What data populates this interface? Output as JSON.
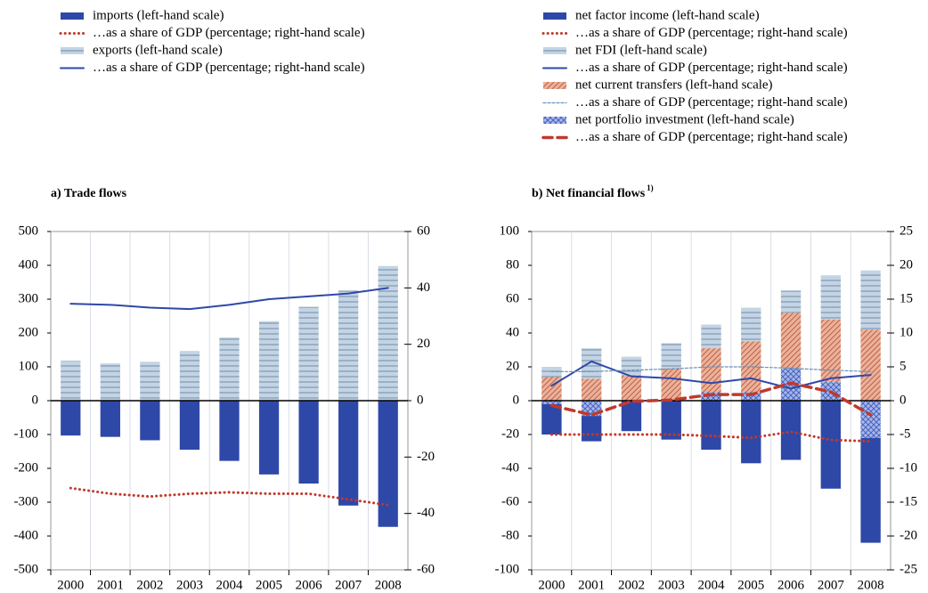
{
  "chart_data": [
    {
      "type": "bar",
      "title": "a) Trade flows",
      "categories": [
        "2000",
        "2001",
        "2002",
        "2003",
        "2004",
        "2005",
        "2006",
        "2007",
        "2008"
      ],
      "ylim": [
        -500,
        500
      ],
      "yticks": [
        -500,
        -400,
        -300,
        -200,
        -100,
        0,
        100,
        200,
        300,
        400,
        500
      ],
      "y2lim": [
        -60,
        60
      ],
      "y2ticks": [
        -60,
        -40,
        -20,
        0,
        20,
        40,
        60
      ],
      "series": [
        {
          "name": "imports (left-hand scale)",
          "type": "bar",
          "color": "#2e48a8",
          "values": [
            -103,
            -107,
            -117,
            -145,
            -178,
            -218,
            -245,
            -310,
            -373
          ]
        },
        {
          "name": "…as a share of GDP (percentage; right-hand scale)",
          "type": "line",
          "axis": "y2",
          "color": "#c0392b",
          "dash": "dotted",
          "line_width": 3,
          "values": [
            -31,
            -33,
            -34,
            -33,
            -32.5,
            -33,
            -33,
            -35,
            -37
          ]
        },
        {
          "name": "exports (left-hand scale)",
          "type": "bar",
          "color": "#c4d4e4",
          "pattern": "horizontal",
          "hatch_color": "#6f8ca8",
          "values": [
            118,
            110,
            115,
            147,
            187,
            235,
            277,
            325,
            398
          ]
        },
        {
          "name": "…as a share of GDP (percentage; right-hand scale)",
          "type": "line",
          "axis": "y2",
          "color": "#2e48a8",
          "dash": "solid",
          "line_width": 2,
          "values": [
            34.4,
            34,
            33,
            32.5,
            34,
            36,
            37,
            38,
            40
          ]
        }
      ]
    },
    {
      "type": "bar",
      "title": "b) Net financial flows",
      "title_note": "1)",
      "categories": [
        "2000",
        "2001",
        "2002",
        "2003",
        "2004",
        "2005",
        "2006",
        "2007",
        "2008"
      ],
      "ylim": [
        -100,
        100
      ],
      "yticks": [
        -100,
        -80,
        -60,
        -40,
        -20,
        0,
        20,
        40,
        60,
        80,
        100
      ],
      "y2lim": [
        -25,
        25
      ],
      "y2ticks": [
        -25,
        -20,
        -15,
        -10,
        -5,
        0,
        5,
        10,
        15,
        20,
        25
      ],
      "series": [
        {
          "name": "net factor income (left-hand scale)",
          "type": "bar",
          "color": "#2e48a8",
          "values": [
            -18,
            -15,
            -18,
            -23,
            -29,
            -37,
            -35,
            -52,
            -62
          ]
        },
        {
          "name": "…as a share of GDP (percentage; right-hand scale)",
          "type": "line",
          "axis": "y2",
          "color": "#c0392b",
          "dash": "dotted",
          "line_width": 3,
          "values": [
            -5,
            -5,
            -5,
            -5,
            -5.2,
            -5.5,
            -4.6,
            -5.8,
            -6
          ]
        },
        {
          "name": "net FDI (left-hand scale)",
          "type": "bar",
          "color": "#c4d4e4",
          "pattern": "horizontal",
          "hatch_color": "#6f8ca8",
          "values": [
            6,
            18,
            11,
            15,
            14,
            20,
            13,
            26,
            35
          ]
        },
        {
          "name": "…as a share of GDP (percentage; right-hand scale)",
          "type": "line",
          "axis": "y2",
          "color": "#2e48a8",
          "dash": "solid",
          "line_width": 2,
          "values": [
            2.2,
            5.8,
            3.6,
            3.3,
            2.6,
            3.3,
            1.8,
            3.3,
            3.8
          ]
        },
        {
          "name": "net current transfers (left-hand scale)",
          "type": "bar",
          "color": "#eab29a",
          "pattern": "diagonal",
          "hatch_color": "#c0604a",
          "values": [
            14,
            13,
            15,
            19,
            26,
            30,
            33,
            37,
            42
          ]
        },
        {
          "name": "…as a share of GDP (percentage; right-hand scale)",
          "type": "line",
          "axis": "y2",
          "color": "#6a90b8",
          "dash": "dashed",
          "line_width": 1.2,
          "values": [
            4.3,
            4.3,
            4.5,
            4.7,
            5,
            5,
            4.8,
            4.5,
            4.3
          ]
        },
        {
          "name": "net portfolio investment (left-hand scale)",
          "type": "bar",
          "color": "#a8b8e8",
          "pattern": "crosshatch",
          "hatch_color": "#4a62c0",
          "values": [
            -2,
            -9,
            0,
            0,
            5,
            5,
            19,
            11,
            -22
          ]
        },
        {
          "name": "…as a share of GDP (percentage; right-hand scale)",
          "type": "line",
          "axis": "y2",
          "color": "#c0392b",
          "dash": "dashed",
          "line_width": 3.5,
          "values": [
            -0.7,
            -2.1,
            -0.1,
            0.1,
            0.9,
            0.9,
            2.6,
            1.3,
            -2.1
          ]
        }
      ]
    }
  ]
}
